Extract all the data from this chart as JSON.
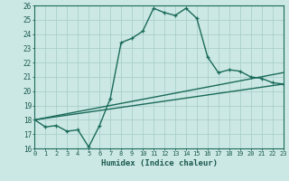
{
  "title": "",
  "xlabel": "Humidex (Indice chaleur)",
  "ylabel": "",
  "background_color": "#cce8e4",
  "grid_color": "#aacfcb",
  "line_color": "#1a6b5a",
  "text_color": "#1a5a50",
  "xlim": [
    0,
    23
  ],
  "ylim": [
    16,
    26
  ],
  "yticks": [
    16,
    17,
    18,
    19,
    20,
    21,
    22,
    23,
    24,
    25,
    26
  ],
  "xticks": [
    0,
    1,
    2,
    3,
    4,
    5,
    6,
    7,
    8,
    9,
    10,
    11,
    12,
    13,
    14,
    15,
    16,
    17,
    18,
    19,
    20,
    21,
    22,
    23
  ],
  "line1_x": [
    0,
    1,
    2,
    3,
    4,
    5,
    6,
    7,
    8,
    9,
    10,
    11,
    12,
    13,
    14,
    15,
    16,
    17,
    18,
    19,
    20,
    21,
    22,
    23
  ],
  "line1_y": [
    18.0,
    17.5,
    17.6,
    17.2,
    17.3,
    16.1,
    17.6,
    19.5,
    23.4,
    23.7,
    24.2,
    25.8,
    25.5,
    25.3,
    25.8,
    25.1,
    22.4,
    21.3,
    21.5,
    21.4,
    21.0,
    20.9,
    20.6,
    20.5
  ],
  "line2_x": [
    0,
    23
  ],
  "line2_y": [
    18.0,
    20.5
  ],
  "line3_x": [
    0,
    23
  ],
  "line3_y": [
    18.0,
    21.3
  ]
}
